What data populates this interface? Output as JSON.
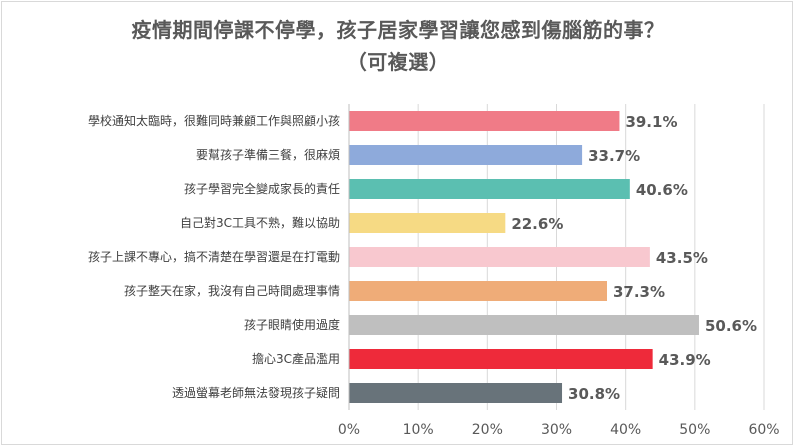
{
  "chart_data": {
    "type": "bar",
    "orientation": "horizontal",
    "title": "疫情期間停課不停學，孩子居家學習讓您感到傷腦筋的事？",
    "subtitle": "（可複選）",
    "categories": [
      "學校通知太臨時，很難同時兼顧工作與照顧小孩",
      "要幫孩子準備三餐，很麻煩",
      "孩子學習完全變成家長的責任",
      "自己對3C工具不熟，難以協助",
      "孩子上課不專心，搞不清楚在學習還是在打電動",
      "孩子整天在家，我沒有自己時間處理事情",
      "孩子眼睛使用過度",
      "擔心3C產品濫用",
      "透過螢幕老師無法發現孩子疑問"
    ],
    "values": [
      39.1,
      33.7,
      40.6,
      22.6,
      43.5,
      37.3,
      50.6,
      43.9,
      30.8
    ],
    "value_labels": [
      "39.1%",
      "33.7%",
      "40.6%",
      "22.6%",
      "43.5%",
      "37.3%",
      "50.6%",
      "43.9%",
      "30.8%"
    ],
    "colors": [
      "#f07b87",
      "#8eaadb",
      "#5bbfb1",
      "#f6da84",
      "#f8c8cf",
      "#efac78",
      "#bfbfbf",
      "#ee2a3a",
      "#68737a"
    ],
    "xlim": [
      0,
      60
    ],
    "x_ticks": [
      "0%",
      "10%",
      "20%",
      "30%",
      "40%",
      "50%",
      "60%"
    ],
    "grid": "vertical",
    "legend": "none"
  }
}
